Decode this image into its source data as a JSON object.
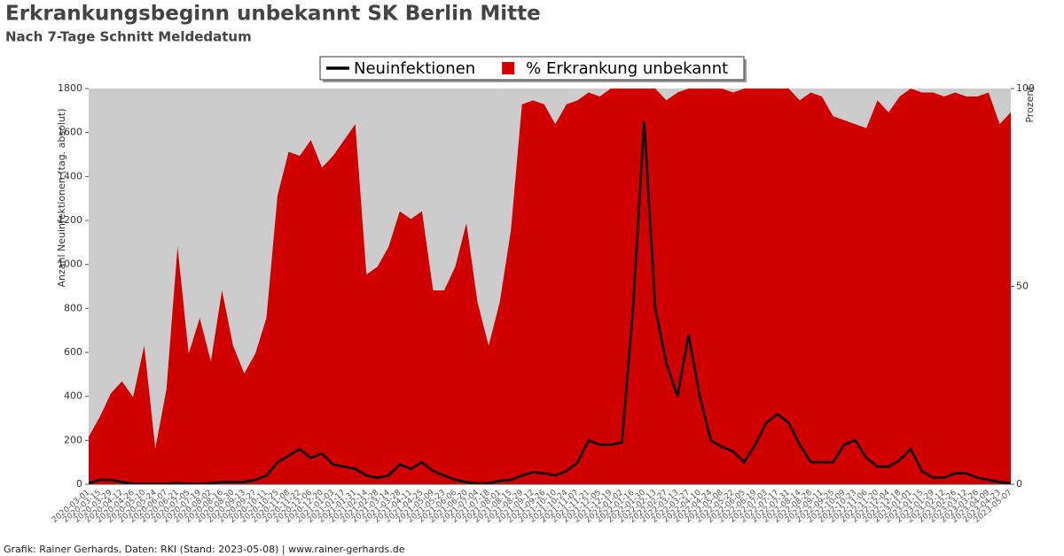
{
  "chart_data": {
    "type": "line-area",
    "title": "Erkrankungsbeginn unbekannt SK Berlin Mitte",
    "subtitle": "Nach 7-Tage Schnitt Meldedatum",
    "ylabel": "Anzahl Neuinfektionen (tag. absolut)",
    "y2label": "Prozent",
    "footer": "Grafik: Rainer Gerhards, Daten: RKI (Stand: 2023-05-08) | www.rainer-gerhards.de",
    "categories": [
      "2020-03-01",
      "2020-03-15",
      "2020-03-29",
      "2020-04-12",
      "2020-04-26",
      "2020-05-10",
      "2020-05-24",
      "2020-06-07",
      "2020-06-21",
      "2020-07-05",
      "2020-07-19",
      "2020-08-02",
      "2020-08-16",
      "2020-08-30",
      "2020-09-13",
      "2020-09-27",
      "2020-10-11",
      "2020-10-25",
      "2020-11-08",
      "2020-11-22",
      "2020-12-06",
      "2020-12-20",
      "2021-01-03",
      "2021-01-17",
      "2021-01-31",
      "2021-02-14",
      "2021-02-28",
      "2021-03-14",
      "2021-03-28",
      "2021-04-11",
      "2021-04-25",
      "2021-05-09",
      "2021-05-23",
      "2021-06-06",
      "2021-06-20",
      "2021-07-04",
      "2021-07-18",
      "2021-08-01",
      "2021-08-15",
      "2021-08-29",
      "2021-09-12",
      "2021-09-26",
      "2021-10-10",
      "2021-10-24",
      "2021-11-07",
      "2021-11-21",
      "2021-12-05",
      "2021-12-19",
      "2022-01-02",
      "2022-01-16",
      "2022-01-30",
      "2022-02-13",
      "2022-02-27",
      "2022-03-13",
      "2022-03-27",
      "2022-04-10",
      "2022-04-24",
      "2022-05-08",
      "2022-05-22",
      "2022-06-05",
      "2022-06-19",
      "2022-07-03",
      "2022-07-17",
      "2022-07-31",
      "2022-08-14",
      "2022-08-28",
      "2022-09-11",
      "2022-09-25",
      "2022-10-09",
      "2022-10-23",
      "2022-11-06",
      "2022-11-20",
      "2022-12-04",
      "2022-12-18",
      "2023-01-01",
      "2023-01-15",
      "2023-01-29",
      "2023-02-12",
      "2023-02-26",
      "2023-03-12",
      "2023-03-26",
      "2023-04-09",
      "2023-04-23",
      "2023-05-07"
    ],
    "series": [
      {
        "name": "Neuinfektionen",
        "color": "#000000",
        "kind": "line",
        "values": [
          5,
          20,
          20,
          10,
          3,
          3,
          3,
          3,
          5,
          3,
          3,
          5,
          10,
          10,
          10,
          20,
          40,
          100,
          130,
          160,
          120,
          140,
          90,
          80,
          70,
          40,
          30,
          40,
          90,
          70,
          100,
          60,
          40,
          20,
          10,
          3,
          5,
          15,
          20,
          40,
          55,
          50,
          40,
          60,
          100,
          200,
          180,
          180,
          190,
          800,
          1650,
          800,
          550,
          400,
          680,
          400,
          200,
          170,
          150,
          100,
          180,
          280,
          320,
          280,
          180,
          100,
          100,
          100,
          180,
          200,
          120,
          80,
          80,
          110,
          160,
          60,
          30,
          30,
          50,
          50,
          30,
          20,
          10,
          5
        ]
      },
      {
        "name": "% Erkrankung unbekannt",
        "color": "#d00000",
        "kind": "area",
        "axis": "y2",
        "values": [
          12,
          17,
          23,
          26,
          22,
          35,
          9,
          24,
          60,
          33,
          42,
          31,
          49,
          35,
          28,
          33,
          42,
          73,
          84,
          83,
          87,
          80,
          83,
          87,
          91,
          53,
          55,
          60,
          69,
          67,
          69,
          49,
          49,
          55,
          66,
          46,
          35,
          46,
          64,
          96,
          97,
          96,
          91,
          96,
          97,
          99,
          98,
          100,
          100,
          100,
          100,
          100,
          97,
          99,
          100,
          100,
          100,
          100,
          99,
          100,
          100,
          100,
          100,
          100,
          97,
          99,
          98,
          93,
          92,
          91,
          90,
          97,
          94,
          98,
          100,
          99,
          99,
          98,
          99,
          98,
          98,
          99,
          91,
          94
        ]
      }
    ],
    "ylim": [
      0,
      1800
    ],
    "yticks": [
      0,
      200,
      400,
      600,
      800,
      1000,
      1200,
      1400,
      1600,
      1800
    ],
    "y2lim": [
      0,
      100
    ],
    "y2ticks": [
      0,
      50,
      100
    ],
    "background": "#cccccc",
    "legend": "top"
  }
}
